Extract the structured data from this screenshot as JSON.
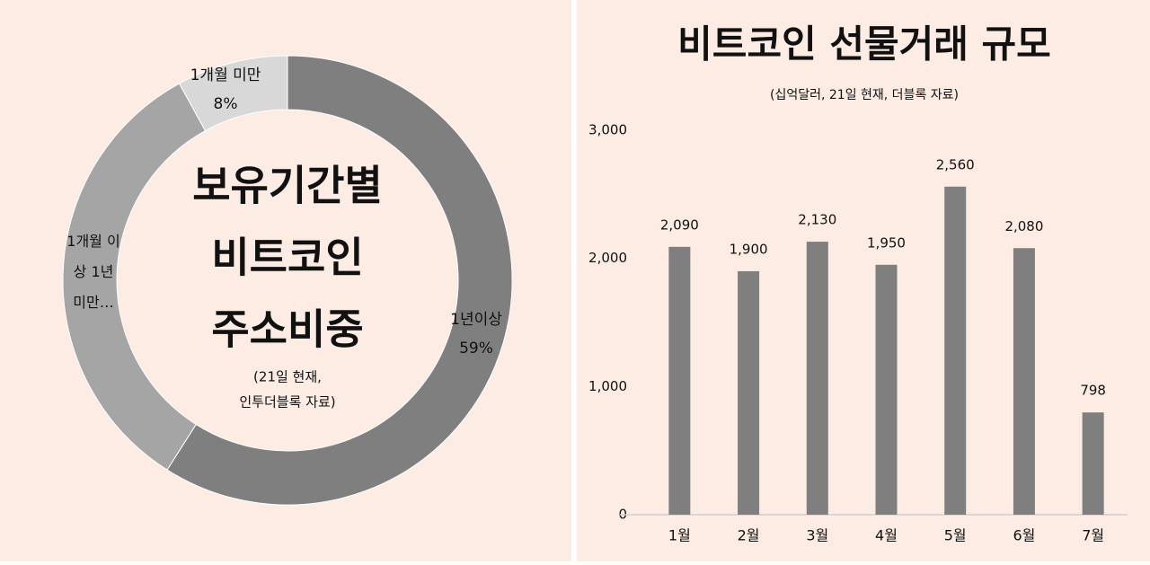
{
  "chart_data": [
    {
      "type": "donut",
      "title": [
        "보유기간별",
        "비트코인",
        "주소비중"
      ],
      "subtitle": [
        "(21일 현재,",
        "인투더블록 자료)"
      ],
      "categories": [
        "1년이상",
        "1개월 이상 1년 미만…",
        "1개월 미만"
      ],
      "values": [
        59,
        33,
        8
      ],
      "value_labels": [
        "59%",
        null,
        "8%"
      ],
      "colors": [
        "#7f7f7f",
        "#a5a5a5",
        "#d8d8d8"
      ]
    },
    {
      "type": "bar",
      "title": "비트코인 선물거래 규모",
      "subtitle": "(십억달러, 21일 현재, 더블록 자료)",
      "categories": [
        "1월",
        "2월",
        "3월",
        "4월",
        "5월",
        "6월",
        "7월"
      ],
      "values": [
        2090,
        1900,
        2130,
        1950,
        2560,
        2080,
        798
      ],
      "value_labels": [
        "2,090",
        "1,900",
        "2,130",
        "1,950",
        "2,560",
        "2,080",
        "798"
      ],
      "color": "#7f7f7f",
      "ylim": [
        0,
        3000
      ],
      "yticks": [
        0,
        {
          "value": 1000,
          "label": "1,000"
        },
        {
          "value": 2000,
          "label": "2,000"
        },
        {
          "value": 3000,
          "label": "3,000"
        }
      ],
      "grid": false
    }
  ]
}
